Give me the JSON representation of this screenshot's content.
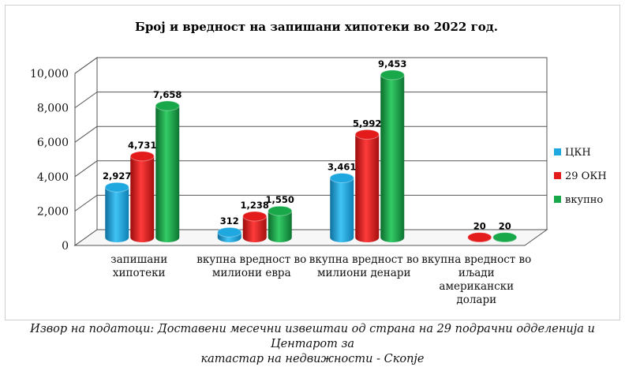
{
  "chart_data": {
    "type": "bar",
    "title": "Број и вредност на запишани хипотеки во 2022 год.",
    "categories": [
      [
        "запишани",
        "хипотеки"
      ],
      [
        "вкупна вредност во",
        "милиони евра"
      ],
      [
        "вкупна вредност во",
        "милиони денари"
      ],
      [
        "вкупна вредност во",
        "иљади",
        "американски",
        "долари"
      ]
    ],
    "series": [
      {
        "name": "ЦКН",
        "color": "#1fa7e0",
        "values": [
          2927,
          312,
          3461,
          null
        ]
      },
      {
        "name": "29 ОКН",
        "color": "#e31b1b",
        "values": [
          4731,
          1238,
          5992,
          20
        ]
      },
      {
        "name": "вкупно",
        "color": "#18a84a",
        "values": [
          7658,
          1550,
          9453,
          20
        ]
      }
    ],
    "value_labels": [
      [
        "2,927",
        "312",
        "3,461",
        ""
      ],
      [
        "4,731",
        "1,238",
        "5,992",
        "20"
      ],
      [
        "7,658",
        "1,550",
        "9,453",
        "20"
      ]
    ],
    "ylim": [
      0,
      10000
    ],
    "yticks": [
      "0",
      "2,000",
      "4,000",
      "6,000",
      "8,000",
      "10,000"
    ],
    "grid": true,
    "legend_position": "right"
  },
  "source": {
    "line1": "Извор на податоци: Доставени месечни извештаи од страна на 29 подрачни одделенија и Центарот за",
    "line2": "катастар на недвижности - Скопје"
  }
}
